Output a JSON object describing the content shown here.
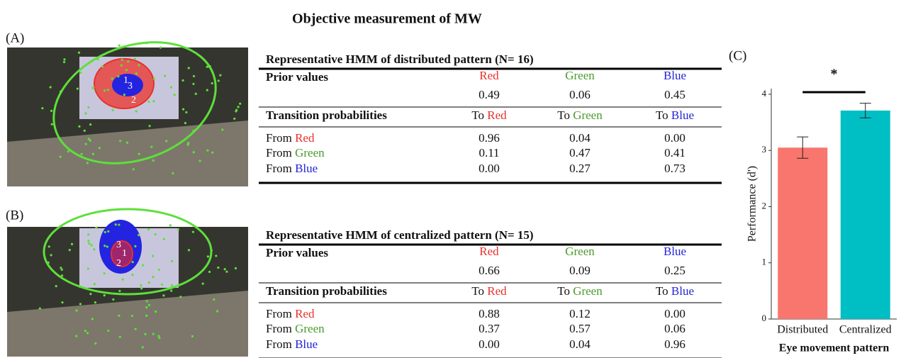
{
  "title": "Objective measurement of MW",
  "panels": [
    "(A)",
    "(B)",
    "(C)"
  ],
  "state_colors": [
    "#e8302a",
    "#4a9a2a",
    "#2323d8"
  ],
  "photo_labels": [
    [
      "1",
      "3",
      "2"
    ],
    [
      "3",
      "1",
      "2"
    ]
  ],
  "tables": [
    {
      "title": "Representative HMM of distributed pattern (N= 16)",
      "prior_label": "Prior values",
      "states": [
        "Red",
        "Green",
        "Blue"
      ],
      "priors": [
        "0.49",
        "0.06",
        "0.45"
      ],
      "transition_label": "Transition probabilities",
      "to": "To",
      "from": "From",
      "transitions": [
        [
          "0.96",
          "0.04",
          "0.00"
        ],
        [
          "0.11",
          "0.47",
          "0.41"
        ],
        [
          "0.00",
          "0.27",
          "0.73"
        ]
      ]
    },
    {
      "title": "Representative HMM of centralized pattern (N= 15)",
      "prior_label": "Prior values",
      "states": [
        "Red",
        "Green",
        "Blue"
      ],
      "priors": [
        "0.66",
        "0.09",
        "0.25"
      ],
      "transition_label": "Transition probabilities",
      "to": "To",
      "from": "From",
      "transitions": [
        [
          "0.88",
          "0.12",
          "0.00"
        ],
        [
          "0.37",
          "0.57",
          "0.06"
        ],
        [
          "0.00",
          "0.04",
          "0.96"
        ]
      ]
    }
  ],
  "chart_data": {
    "type": "bar",
    "categories": [
      "Distributed",
      "Centralized"
    ],
    "values": [
      3.05,
      3.71
    ],
    "errors": [
      0.19,
      0.13
    ],
    "colors": [
      "#f8766d",
      "#00bfc4"
    ],
    "ylim": [
      0,
      4.1
    ],
    "yticks": [
      0,
      1,
      2,
      3,
      4
    ],
    "ylabel": "Performance (d')",
    "xlabel": "Eye movement pattern",
    "annotation": "*"
  }
}
